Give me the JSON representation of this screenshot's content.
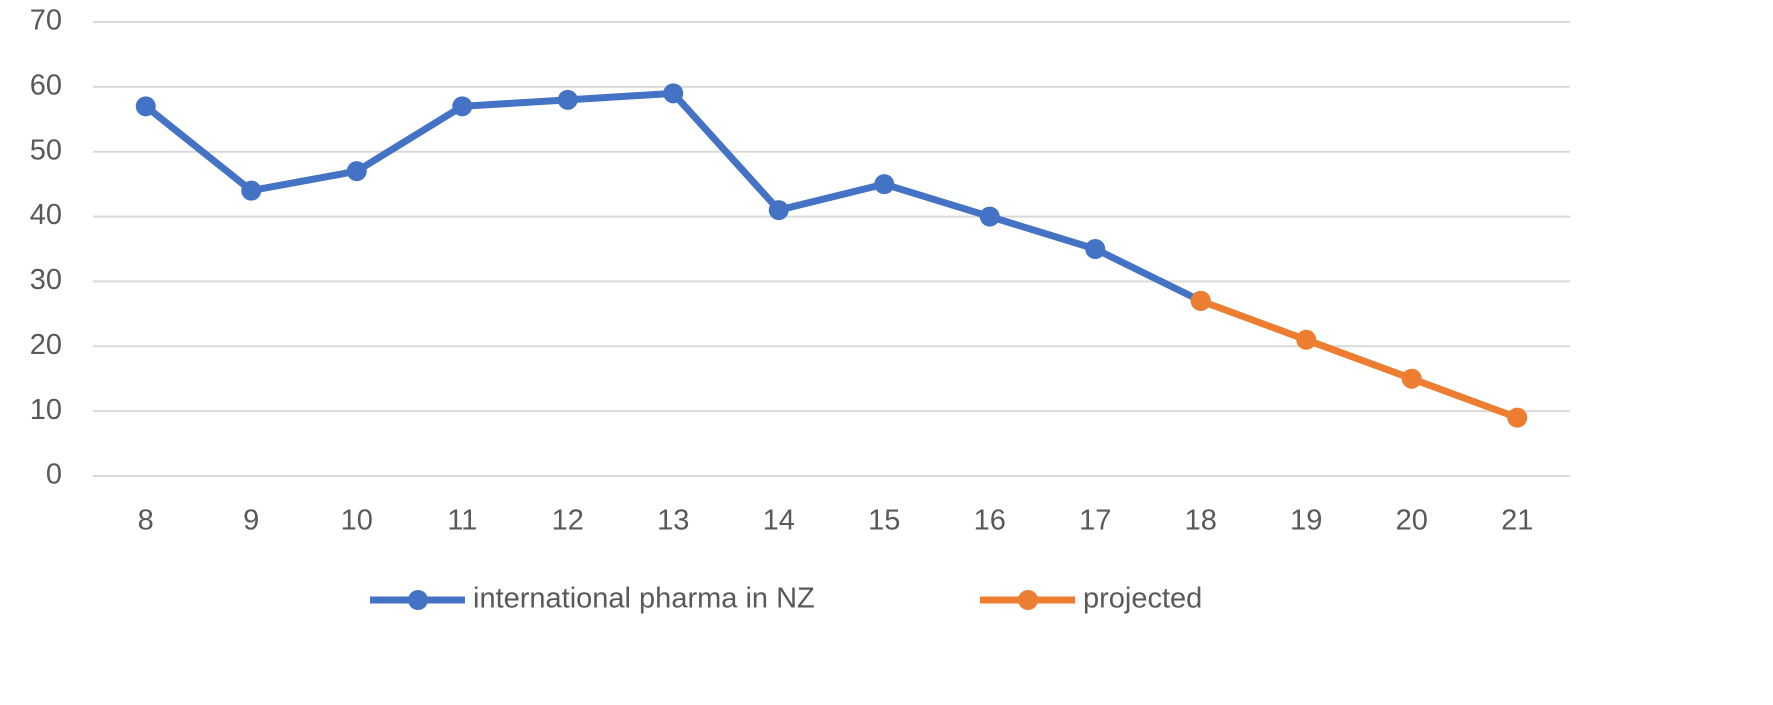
{
  "chart_data": {
    "type": "line",
    "categories": [
      "8",
      "9",
      "10",
      "11",
      "12",
      "13",
      "14",
      "15",
      "16",
      "17",
      "18",
      "19",
      "20",
      "21"
    ],
    "series": [
      {
        "name": "international pharma in NZ",
        "color": "#4472c4",
        "values": [
          57,
          44,
          47,
          57,
          58,
          59,
          41,
          45,
          40,
          35,
          27,
          null,
          null,
          null
        ]
      },
      {
        "name": "projected",
        "color": "#ed7d31",
        "values": [
          null,
          null,
          null,
          null,
          null,
          null,
          null,
          null,
          null,
          null,
          27,
          21,
          15,
          9
        ]
      }
    ],
    "ylim": [
      0,
      70
    ],
    "yticks": [
      0,
      10,
      20,
      30,
      40,
      50,
      60,
      70
    ],
    "grid": true,
    "legend": "bottom"
  }
}
